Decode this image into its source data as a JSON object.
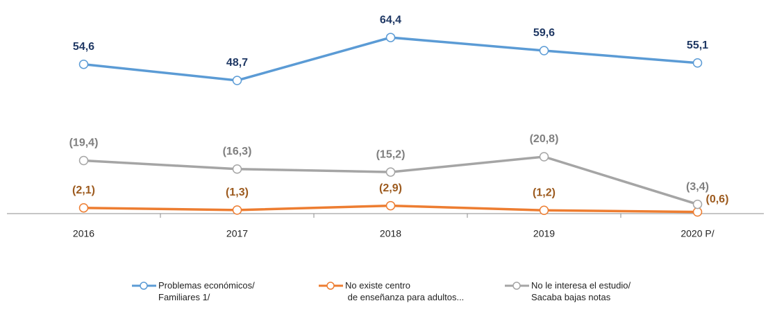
{
  "chart_data": {
    "type": "line",
    "categories": [
      "2016",
      "2017",
      "2018",
      "2019",
      "2020 P/"
    ],
    "ylim": [
      0,
      70
    ],
    "series": [
      {
        "name": "Problemas económicos/\nFamiliares 1/",
        "color": "#5b9bd5",
        "label_color": "#1f3864",
        "values": [
          54.6,
          48.7,
          64.4,
          59.6,
          55.1
        ],
        "value_labels": [
          "54,6",
          "48,7",
          "64,4",
          "59,6",
          "55,1"
        ]
      },
      {
        "name": "No existe centro\n de enseñanza para adultos...",
        "color": "#ed7d31",
        "label_color": "#9c5a1e",
        "values": [
          2.1,
          1.3,
          2.9,
          1.2,
          0.6
        ],
        "value_labels": [
          "(2,1)",
          "(1,3)",
          "(2,9)",
          "(1,2)",
          "(0,6)"
        ]
      },
      {
        "name": "No le interesa el estudio/\nSacaba bajas notas",
        "color": "#a5a5a5",
        "label_color": "#7f7f7f",
        "values": [
          19.4,
          16.3,
          15.2,
          20.8,
          3.4
        ],
        "value_labels": [
          "(19,4)",
          "(16,3)",
          "(15,2)",
          "(20,8)",
          "(3,4)"
        ]
      }
    ]
  }
}
